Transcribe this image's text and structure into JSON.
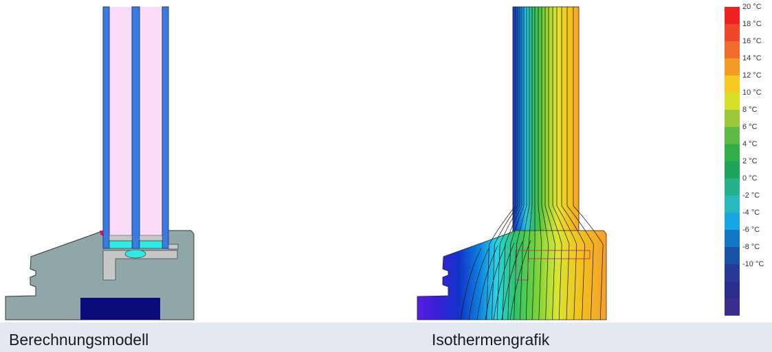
{
  "captions": {
    "left": "Berechnungsmodell",
    "right": "Isothermengrafik"
  },
  "colors": {
    "frame": "#8fa7a9",
    "glass_pane": "#3a7be0",
    "gas_fill": "#fbdcf8",
    "spacer": "#31e9e3",
    "seal_gray": "#c7c7c7",
    "insulation_core": "#0b0b7a",
    "gasket": "#d0157a"
  },
  "legend": {
    "unit": "°C",
    "entries": [
      {
        "label": "20 °C",
        "color": "#ee2024"
      },
      {
        "label": "18 °C",
        "color": "#f0462a"
      },
      {
        "label": "16 °C",
        "color": "#f26b2e"
      },
      {
        "label": "14 °C",
        "color": "#f69a27"
      },
      {
        "label": "12 °C",
        "color": "#f6c922"
      },
      {
        "label": "10 °C",
        "color": "#d8df2a"
      },
      {
        "label": "8 °C",
        "color": "#9cc83b"
      },
      {
        "label": "6 °C",
        "color": "#5fb946"
      },
      {
        "label": "4 °C",
        "color": "#2fae4a"
      },
      {
        "label": "2 °C",
        "color": "#1ea45a"
      },
      {
        "label": "0 °C",
        "color": "#27b08c"
      },
      {
        "label": "-2 °C",
        "color": "#2ab7bd"
      },
      {
        "label": "-4 °C",
        "color": "#16a6e3"
      },
      {
        "label": "-6 °C",
        "color": "#1277c7"
      },
      {
        "label": "-8 °C",
        "color": "#1a52a8"
      },
      {
        "label": "-10 °C",
        "color": "#263a96"
      },
      {
        "label": "",
        "color": "#2b2d8c"
      },
      {
        "label": "",
        "color": "#3a2f8e"
      }
    ]
  }
}
